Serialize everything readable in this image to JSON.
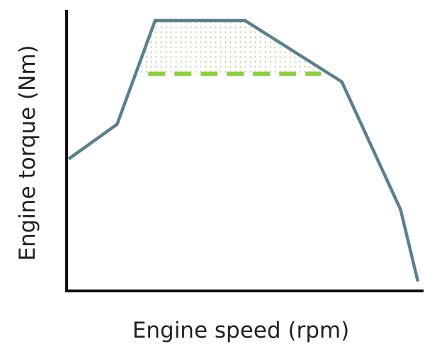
{
  "chart_data": {
    "type": "line",
    "title": "",
    "xlabel": "Engine speed (rpm)",
    "ylabel": "Engine torque (Nm)",
    "x_ticks_shown": false,
    "y_ticks_shown": false,
    "grid": false,
    "xlim": [
      0,
      10
    ],
    "ylim": [
      0,
      10
    ],
    "series": [
      {
        "x": [
          0,
          1.4,
          2.5,
          5.1,
          7.9,
          9.6,
          10.1
        ],
        "y": [
          4.8,
          6.1,
          10.0,
          10.0,
          7.7,
          2.9,
          0.2
        ],
        "color": "#5b7f8d"
      }
    ],
    "reference_line": {
      "style": "dashed",
      "y": 8.0,
      "x_range": [
        2.3,
        7.3
      ],
      "color": "#8cce3e"
    },
    "shaded_region": {
      "pattern": "dotted",
      "color": "#a8d08a",
      "description_bounds": "between torque curve and dashed line"
    }
  }
}
